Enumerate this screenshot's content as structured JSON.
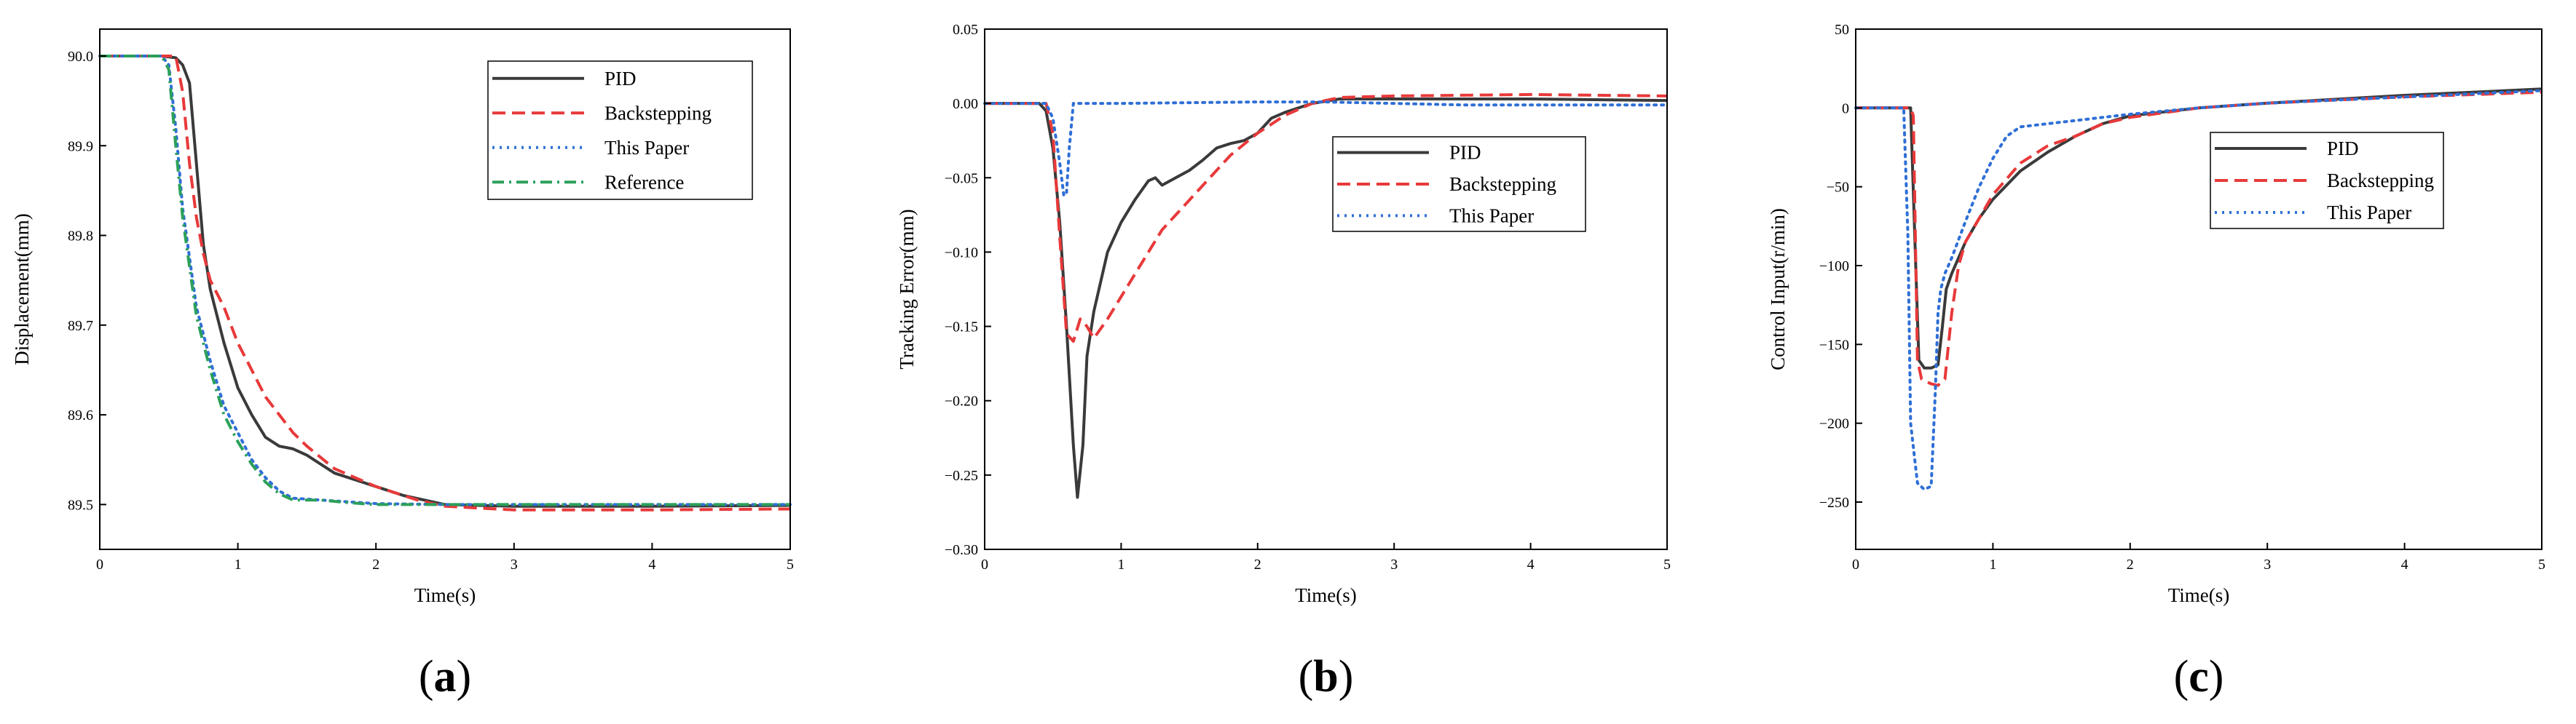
{
  "chart_data": [
    {
      "type": "line",
      "panel_label": "a",
      "xlabel": "Time(s)",
      "ylabel": "Displacement(mm)",
      "xlim": [
        0,
        5
      ],
      "ylim": [
        89.45,
        90.03
      ],
      "xticks": [
        0,
        1,
        2,
        3,
        4,
        5
      ],
      "yticks": [
        89.5,
        89.6,
        89.7,
        89.8,
        89.9,
        90.0
      ],
      "ytick_labels": [
        "89.5",
        "89.6",
        "89.7",
        "89.8",
        "89.9",
        "90.0"
      ],
      "grid": false,
      "legend_position": "top-right",
      "series": [
        {
          "name": "PID",
          "color": "#3a3a3a",
          "dash": "solid",
          "x": [
            0,
            0.45,
            0.55,
            0.6,
            0.65,
            0.7,
            0.75,
            0.8,
            0.9,
            1.0,
            1.1,
            1.2,
            1.3,
            1.4,
            1.5,
            1.7,
            1.9,
            2.0,
            2.2,
            2.5,
            3.0,
            4.0,
            5.0
          ],
          "y": [
            90.0,
            90.0,
            89.998,
            89.99,
            89.97,
            89.88,
            89.79,
            89.74,
            89.68,
            89.63,
            89.6,
            89.575,
            89.565,
            89.562,
            89.555,
            89.535,
            89.525,
            89.52,
            89.51,
            89.5,
            89.498,
            89.498,
            89.499
          ]
        },
        {
          "name": "Backstepping",
          "color": "#e8393a",
          "dash": "dash",
          "x": [
            0,
            0.55,
            0.6,
            0.65,
            0.7,
            0.75,
            0.8,
            0.9,
            1.0,
            1.1,
            1.2,
            1.3,
            1.4,
            1.5,
            1.7,
            2.0,
            2.3,
            2.5,
            3.0,
            4.0,
            5.0
          ],
          "y": [
            90.0,
            90.0,
            89.96,
            89.88,
            89.82,
            89.78,
            89.75,
            89.72,
            89.68,
            89.65,
            89.62,
            89.6,
            89.58,
            89.565,
            89.54,
            89.52,
            89.505,
            89.498,
            89.494,
            89.494,
            89.495
          ]
        },
        {
          "name": "This Paper",
          "color": "#2f6fd6",
          "dash": "dot",
          "x": [
            0,
            0.45,
            0.5,
            0.55,
            0.6,
            0.7,
            0.8,
            0.9,
            1.0,
            1.1,
            1.2,
            1.3,
            1.4,
            1.6,
            1.8,
            2.0,
            2.5,
            3.0,
            4.0,
            5.0
          ],
          "y": [
            90.0,
            90.0,
            89.99,
            89.92,
            89.83,
            89.72,
            89.66,
            89.61,
            89.58,
            89.55,
            89.53,
            89.515,
            89.507,
            89.505,
            89.503,
            89.501,
            89.5,
            89.5,
            89.5,
            89.5
          ]
        },
        {
          "name": "Reference",
          "color": "#2ca05a",
          "dash": "dashdot",
          "x": [
            0,
            0.45,
            0.5,
            0.55,
            0.6,
            0.7,
            0.8,
            0.9,
            1.0,
            1.1,
            1.2,
            1.3,
            1.4,
            1.6,
            1.8,
            2.0,
            2.5,
            3.0,
            4.0,
            5.0
          ],
          "y": [
            90.0,
            90.0,
            89.985,
            89.9,
            89.82,
            89.71,
            89.65,
            89.6,
            89.57,
            89.545,
            89.525,
            89.512,
            89.505,
            89.505,
            89.502,
            89.5,
            89.5,
            89.5,
            89.5,
            89.5
          ]
        }
      ]
    },
    {
      "type": "line",
      "panel_label": "b",
      "xlabel": "Time(s)",
      "ylabel": "Tracking Error(mm)",
      "xlim": [
        0,
        5
      ],
      "ylim": [
        -0.3,
        0.05
      ],
      "xticks": [
        0,
        1,
        2,
        3,
        4,
        5
      ],
      "yticks": [
        -0.3,
        -0.25,
        -0.2,
        -0.15,
        -0.1,
        -0.05,
        0.0,
        0.05
      ],
      "ytick_labels": [
        "−0.30",
        "−0.25",
        "−0.20",
        "−0.15",
        "−0.10",
        "−0.05",
        "0.00",
        "0.05"
      ],
      "grid": false,
      "legend_position": "center-right",
      "series": [
        {
          "name": "PID",
          "color": "#3a3a3a",
          "dash": "solid",
          "x": [
            0,
            0.4,
            0.45,
            0.5,
            0.55,
            0.6,
            0.65,
            0.68,
            0.72,
            0.75,
            0.8,
            0.9,
            1.0,
            1.1,
            1.2,
            1.25,
            1.3,
            1.4,
            1.5,
            1.6,
            1.7,
            1.8,
            1.9,
            2.0,
            2.1,
            2.2,
            2.4,
            2.6,
            3.0,
            4.0,
            5.0
          ],
          "y": [
            0,
            0,
            -0.005,
            -0.03,
            -0.08,
            -0.15,
            -0.23,
            -0.265,
            -0.23,
            -0.17,
            -0.14,
            -0.1,
            -0.08,
            -0.065,
            -0.052,
            -0.05,
            -0.055,
            -0.05,
            -0.045,
            -0.038,
            -0.03,
            -0.027,
            -0.025,
            -0.02,
            -0.01,
            -0.006,
            0.0,
            0.003,
            0.003,
            0.003,
            0.002
          ]
        },
        {
          "name": "Backstepping",
          "color": "#e8393a",
          "dash": "dash",
          "x": [
            0,
            0.45,
            0.5,
            0.55,
            0.6,
            0.65,
            0.7,
            0.75,
            0.8,
            0.9,
            1.0,
            1.1,
            1.2,
            1.3,
            1.4,
            1.6,
            1.8,
            2.0,
            2.2,
            2.4,
            2.6,
            3.0,
            4.0,
            5.0
          ],
          "y": [
            0,
            0,
            -0.02,
            -0.09,
            -0.155,
            -0.16,
            -0.145,
            -0.15,
            -0.158,
            -0.145,
            -0.13,
            -0.115,
            -0.1,
            -0.085,
            -0.075,
            -0.055,
            -0.035,
            -0.02,
            -0.008,
            0.0,
            0.004,
            0.005,
            0.006,
            0.005
          ]
        },
        {
          "name": "This Paper",
          "color": "#2f6fd6",
          "dash": "dot",
          "x": [
            0,
            0.45,
            0.5,
            0.55,
            0.58,
            0.6,
            0.62,
            0.65,
            0.7,
            0.8,
            1.0,
            1.5,
            2.0,
            2.5,
            3.0,
            3.5,
            4.0,
            5.0
          ],
          "y": [
            0,
            0,
            -0.01,
            -0.04,
            -0.062,
            -0.06,
            -0.03,
            0.0,
            0.0,
            0.0,
            0.0,
            0.0005,
            0.001,
            0.001,
            0.0,
            -0.001,
            -0.001,
            -0.001
          ]
        }
      ]
    },
    {
      "type": "line",
      "panel_label": "c",
      "xlabel": "Time(s)",
      "ylabel": "Control Input(r/min)",
      "xlim": [
        0,
        5
      ],
      "ylim": [
        -280,
        50
      ],
      "xticks": [
        0,
        1,
        2,
        3,
        4,
        5
      ],
      "yticks": [
        -250,
        -200,
        -150,
        -100,
        -50,
        0,
        50
      ],
      "ytick_labels": [
        "−250",
        "−200",
        "−150",
        "−100",
        "−50",
        "0",
        "50"
      ],
      "grid": false,
      "legend_position": "top-right",
      "series": [
        {
          "name": "PID",
          "color": "#3a3a3a",
          "dash": "solid",
          "x": [
            0,
            0.4,
            0.43,
            0.46,
            0.5,
            0.55,
            0.6,
            0.63,
            0.66,
            0.7,
            0.75,
            0.8,
            0.9,
            1.0,
            1.2,
            1.4,
            1.6,
            1.8,
            2.0,
            2.5,
            3.0,
            4.0,
            5.0
          ],
          "y": [
            0,
            0,
            -80,
            -160,
            -165,
            -165,
            -163,
            -140,
            -115,
            -105,
            -95,
            -85,
            -70,
            -58,
            -40,
            -28,
            -18,
            -10,
            -5,
            0,
            3,
            8,
            12
          ]
        },
        {
          "name": "Backstepping",
          "color": "#e8393a",
          "dash": "dash",
          "x": [
            0,
            0.4,
            0.42,
            0.45,
            0.48,
            0.5,
            0.55,
            0.6,
            0.65,
            0.7,
            0.75,
            0.8,
            0.9,
            1.0,
            1.2,
            1.4,
            1.6,
            1.8,
            2.0,
            2.5,
            3.0,
            4.0,
            5.0
          ],
          "y": [
            0,
            0,
            -5,
            -160,
            -172,
            -173,
            -175,
            -176,
            -172,
            -130,
            -100,
            -85,
            -70,
            -55,
            -35,
            -24,
            -18,
            -10,
            -6,
            0,
            3,
            7,
            10
          ]
        },
        {
          "name": "This Paper",
          "color": "#2f6fd6",
          "dash": "dot",
          "x": [
            0,
            0.35,
            0.38,
            0.4,
            0.45,
            0.5,
            0.55,
            0.58,
            0.6,
            0.62,
            0.65,
            0.7,
            0.8,
            0.9,
            1.0,
            1.1,
            1.2,
            1.4,
            1.6,
            1.8,
            2.0,
            2.5,
            3.0,
            4.0,
            5.0
          ],
          "y": [
            0,
            0,
            -80,
            -200,
            -238,
            -242,
            -240,
            -180,
            -130,
            -115,
            -105,
            -95,
            -72,
            -50,
            -32,
            -18,
            -12,
            -10,
            -8,
            -6,
            -4,
            0,
            3,
            7,
            11
          ]
        }
      ]
    }
  ]
}
